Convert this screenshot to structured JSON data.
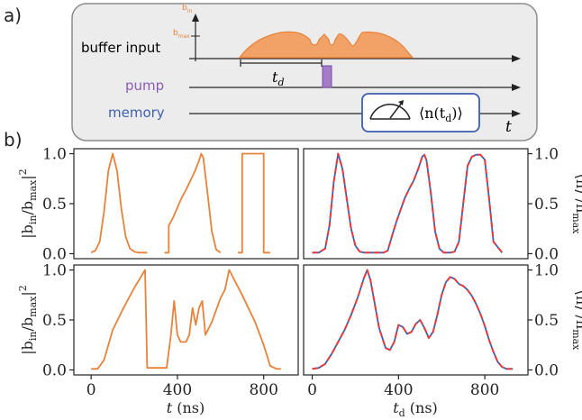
{
  "panel_labels": {
    "a": "a)",
    "b": "b)"
  },
  "schematic": {
    "rows": [
      {
        "name": "buffer input",
        "color": "#e8823a"
      },
      {
        "name": "pump",
        "color": "#8a5db5"
      },
      {
        "name": "memory",
        "color": "#3d5fb0"
      }
    ],
    "axis_label_b": "b",
    "axis_label_b_sub": "in",
    "axis_label_bmax": "b",
    "axis_label_bmax_sub": "max",
    "td_label": "t",
    "td_sub": "d",
    "time_label": "t",
    "readout_label": "⟨n(t",
    "readout_sub": "d",
    "readout_tail": ")⟩"
  },
  "y_label_left_text": "|b_in/b_max|^2",
  "y_label_right_text": "⟨n⟩/n_max",
  "chart_data": [
    {
      "type": "line",
      "panel": "top-left",
      "xlim": [
        -80,
        960
      ],
      "ylim": [
        -0.05,
        1.05
      ],
      "yticks": [
        "0.0",
        "0.5",
        "1.0"
      ],
      "series": [
        {
          "color": "#e8823a",
          "x": [
            0,
            20,
            40,
            60,
            80,
            100,
            120,
            140,
            160,
            180,
            200,
            220,
            240,
            260
          ],
          "y": [
            0.01,
            0.03,
            0.12,
            0.42,
            0.83,
            1.0,
            0.83,
            0.45,
            0.17,
            0.05,
            0.02,
            0.01,
            0.01,
            0.01
          ]
        },
        {
          "color": "#e8823a",
          "x": [
            340,
            360,
            360,
            380,
            400,
            420,
            440,
            460,
            480,
            500,
            510,
            520,
            540,
            560,
            580,
            600
          ],
          "y": [
            0.01,
            0.01,
            0.28,
            0.36,
            0.46,
            0.56,
            0.64,
            0.73,
            0.82,
            0.93,
            1.0,
            0.96,
            0.6,
            0.22,
            0.04,
            0.01
          ]
        },
        {
          "color": "#e8823a",
          "x": [
            680,
            700,
            700,
            800,
            800,
            830
          ],
          "y": [
            0.01,
            0.01,
            1.0,
            1.0,
            0.01,
            0.01
          ]
        }
      ]
    },
    {
      "type": "line",
      "panel": "top-right",
      "xlim": [
        -40,
        1000
      ],
      "ylim": [
        -0.05,
        1.05
      ],
      "yticks": [
        "0.0",
        "0.5",
        "1.0"
      ],
      "series": [
        {
          "color": "#3d5fb0",
          "x": [
            0,
            30,
            60,
            80,
            100,
            120,
            140,
            160,
            180,
            200,
            220,
            240,
            280,
            330,
            350,
            370,
            390,
            410,
            430,
            450,
            470,
            490,
            510,
            520,
            530,
            550,
            570,
            590,
            610,
            640,
            660,
            680,
            700,
            720,
            740,
            760,
            780,
            800,
            820,
            840,
            880
          ],
          "y": [
            0.01,
            0.01,
            0.05,
            0.28,
            0.72,
            1.0,
            0.85,
            0.55,
            0.25,
            0.08,
            0.02,
            0.01,
            0.01,
            0.01,
            0.03,
            0.18,
            0.32,
            0.44,
            0.56,
            0.65,
            0.73,
            0.84,
            0.97,
            0.99,
            0.93,
            0.6,
            0.22,
            0.05,
            0.01,
            0.01,
            0.02,
            0.12,
            0.5,
            0.88,
            0.97,
            0.99,
            0.99,
            0.94,
            0.55,
            0.12,
            0.01
          ]
        },
        {
          "color": "#e83c3c",
          "dashed": true,
          "x": [
            0,
            30,
            60,
            80,
            100,
            120,
            140,
            160,
            180,
            200,
            220,
            240,
            280,
            330,
            350,
            370,
            390,
            410,
            430,
            450,
            470,
            490,
            510,
            520,
            530,
            550,
            570,
            590,
            610,
            640,
            660,
            680,
            700,
            720,
            740,
            760,
            780,
            800,
            820,
            840,
            880
          ],
          "y": [
            0.01,
            0.01,
            0.05,
            0.28,
            0.72,
            1.0,
            0.85,
            0.55,
            0.25,
            0.08,
            0.02,
            0.01,
            0.01,
            0.01,
            0.03,
            0.18,
            0.32,
            0.44,
            0.56,
            0.65,
            0.73,
            0.84,
            0.97,
            0.99,
            0.93,
            0.6,
            0.22,
            0.05,
            0.01,
            0.01,
            0.02,
            0.12,
            0.5,
            0.88,
            0.97,
            0.99,
            0.99,
            0.94,
            0.55,
            0.12,
            0.01
          ]
        }
      ]
    },
    {
      "type": "line",
      "panel": "bottom-left",
      "xlim": [
        -80,
        960
      ],
      "xticks": [
        "0",
        "400",
        "800"
      ],
      "xlabel": "t (ns)",
      "ylim": [
        -0.05,
        1.05
      ],
      "yticks": [
        "0.0",
        "0.5",
        "1.0"
      ],
      "series": [
        {
          "color": "#e8823a",
          "x": [
            0,
            30,
            60,
            100,
            150,
            200,
            250,
            260,
            330,
            350,
            370,
            385,
            400,
            415,
            440,
            455,
            470,
            485,
            500,
            515,
            530,
            560,
            600,
            620,
            640,
            700,
            760,
            800,
            830,
            860,
            880
          ],
          "y": [
            0.01,
            0.01,
            0.1,
            0.4,
            0.62,
            0.82,
            1.0,
            0.02,
            0.02,
            0.02,
            0.35,
            0.69,
            0.35,
            0.28,
            0.28,
            0.35,
            0.62,
            0.45,
            0.62,
            0.69,
            0.35,
            0.48,
            0.72,
            0.8,
            1.0,
            0.75,
            0.48,
            0.25,
            0.04,
            0.01,
            0.01
          ]
        }
      ]
    },
    {
      "type": "line",
      "panel": "bottom-right",
      "xlim": [
        -40,
        1000
      ],
      "xticks": [
        "0",
        "400",
        "800"
      ],
      "xlabel": "t_d (ns)",
      "ylim": [
        -0.05,
        1.05
      ],
      "yticks": [
        "0.0",
        "0.5",
        "1.0"
      ],
      "series": [
        {
          "color": "#3d5fb0",
          "x": [
            0,
            30,
            60,
            90,
            120,
            150,
            180,
            210,
            240,
            255,
            270,
            290,
            310,
            340,
            360,
            380,
            400,
            420,
            440,
            460,
            480,
            500,
            520,
            540,
            560,
            580,
            600,
            620,
            640,
            660,
            680,
            700,
            720,
            740,
            760,
            780,
            800,
            820,
            840,
            860,
            880,
            900,
            930
          ],
          "y": [
            0.01,
            0.02,
            0.06,
            0.16,
            0.28,
            0.4,
            0.55,
            0.72,
            0.92,
            1.0,
            0.9,
            0.66,
            0.42,
            0.22,
            0.2,
            0.28,
            0.45,
            0.43,
            0.36,
            0.38,
            0.46,
            0.5,
            0.42,
            0.32,
            0.38,
            0.55,
            0.75,
            0.88,
            0.93,
            0.91,
            0.86,
            0.84,
            0.8,
            0.74,
            0.66,
            0.56,
            0.44,
            0.3,
            0.18,
            0.08,
            0.03,
            0.01,
            0.01
          ]
        },
        {
          "color": "#e83c3c",
          "dashed": true,
          "x": [
            0,
            30,
            60,
            90,
            120,
            150,
            180,
            210,
            240,
            255,
            270,
            290,
            310,
            340,
            360,
            380,
            400,
            420,
            440,
            460,
            480,
            500,
            520,
            540,
            560,
            580,
            600,
            620,
            640,
            660,
            680,
            700,
            720,
            740,
            760,
            780,
            800,
            820,
            840,
            860,
            880,
            900,
            930
          ],
          "y": [
            0.01,
            0.02,
            0.06,
            0.16,
            0.28,
            0.4,
            0.55,
            0.72,
            0.92,
            1.0,
            0.9,
            0.66,
            0.42,
            0.22,
            0.2,
            0.28,
            0.45,
            0.43,
            0.36,
            0.38,
            0.46,
            0.5,
            0.42,
            0.32,
            0.38,
            0.55,
            0.75,
            0.88,
            0.93,
            0.91,
            0.86,
            0.84,
            0.8,
            0.74,
            0.66,
            0.56,
            0.44,
            0.3,
            0.18,
            0.08,
            0.03,
            0.01,
            0.01
          ]
        }
      ]
    }
  ]
}
